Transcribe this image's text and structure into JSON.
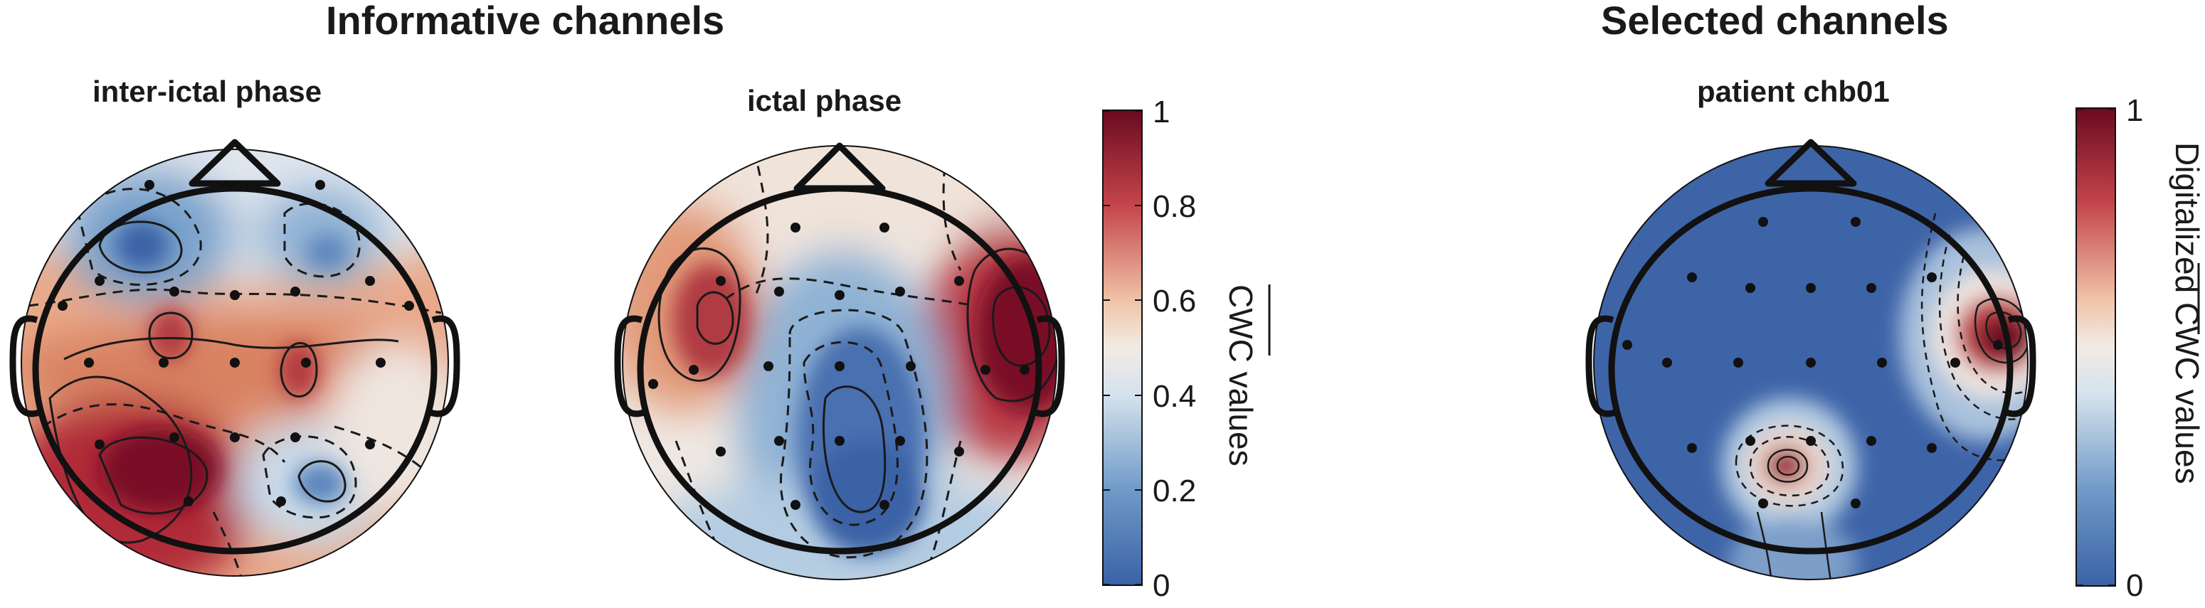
{
  "figure": {
    "left_title": "Informative channels",
    "right_title": "Selected channels"
  },
  "chart_data": [
    {
      "type": "heatmap",
      "subtype": "scalp topographic map",
      "title": "inter-ictal phase",
      "colormap": "blue-white-red",
      "clim": [
        0,
        1
      ],
      "hotspots": [
        {
          "region": "left posterior",
          "value": 0.95
        },
        {
          "region": "left central",
          "value": 0.8
        },
        {
          "region": "right central",
          "value": 0.8
        },
        {
          "region": "central band",
          "value": 0.7
        },
        {
          "region": "left frontal",
          "value": 0.1
        },
        {
          "region": "right frontal",
          "value": 0.25
        },
        {
          "region": "right posterior",
          "value": 0.2
        }
      ]
    },
    {
      "type": "heatmap",
      "subtype": "scalp topographic map",
      "title": "ictal phase",
      "colormap": "blue-white-red",
      "clim": [
        0,
        1
      ],
      "hotspots": [
        {
          "region": "right temporal",
          "value": 1.0
        },
        {
          "region": "left temporal",
          "value": 0.85
        },
        {
          "region": "midline central-posterior",
          "value": 0.08
        },
        {
          "region": "frontal",
          "value": 0.5
        }
      ]
    },
    {
      "type": "heatmap",
      "subtype": "scalp topographic map",
      "title": "patient chb01",
      "colormap": "blue-white-red",
      "clim": [
        0,
        1
      ],
      "hotspots": [
        {
          "region": "right temporal",
          "value": 1.0
        },
        {
          "region": "left parietal-occipital",
          "value": 0.95
        },
        {
          "region": "background",
          "value": 0.0
        }
      ]
    }
  ],
  "colorbars": [
    {
      "label": "CWC values",
      "ticks": [
        "0",
        "0.2",
        "0.4",
        "0.6",
        "0.8",
        "1"
      ]
    },
    {
      "label": "Digitalized CWC values",
      "ticks": [
        "0",
        "1"
      ]
    }
  ]
}
